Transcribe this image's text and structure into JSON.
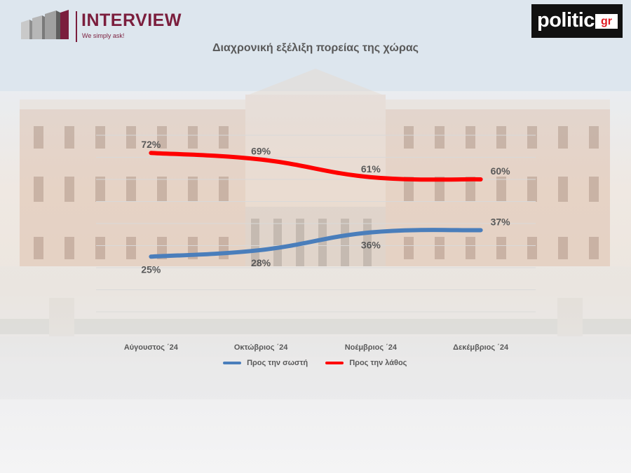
{
  "branding": {
    "interview_name": "INTERVIEW",
    "interview_tagline": "We simply ask!",
    "politic_word": "politic",
    "politic_suffix": "gr",
    "interview_color": "#7b1e3d"
  },
  "colors": {
    "series_right": "#4a7ebb",
    "series_wrong": "#ff0000",
    "text": "#595959",
    "gridline": "#d9d9d9"
  },
  "chart_data": {
    "type": "line",
    "title": "Διαχρονική εξέλιξη πορείας της χώρας",
    "categories": [
      "Αύγουστος ΄24",
      "Οκτώβριος ΄24",
      "Νοέμβριος ΄24",
      "Δεκέμβριος ΄24"
    ],
    "series": [
      {
        "name": "Προς την σωστή",
        "color": "#4a7ebb",
        "values": [
          25,
          28,
          36,
          37
        ],
        "labels": [
          "25%",
          "28%",
          "36%",
          "37%"
        ]
      },
      {
        "name": "Προς την λάθος",
        "color": "#ff0000",
        "values": [
          72,
          69,
          61,
          60
        ],
        "labels": [
          "72%",
          "69%",
          "61%",
          "60%"
        ]
      }
    ],
    "ylim": [
      0,
      80
    ],
    "grid": true,
    "axis_visible": false,
    "legend_position": "bottom",
    "data_label_unit": "%",
    "background": "photo of a neoclassical parliament building"
  }
}
